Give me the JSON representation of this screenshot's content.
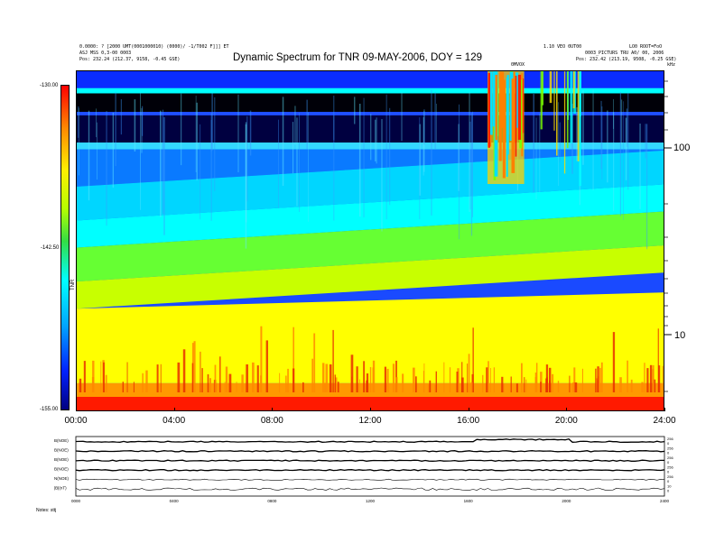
{
  "header": {
    "left_line1": "0.0000: ? [2000 UMT(0001000010) (0000)/ -1/T002 F]]]  ET",
    "left_line2": "ASJ MSS 0,3-00 0003",
    "left_line3": "Pos:  232.24 (212.37, 9158, -0.45 GSE)",
    "right_line1": "1.10 VEO 0UT00",
    "right_line2": "LO0 ROOT=FoO",
    "right_line3": "0003_PICTURS  TRU A0/ 00, 2006",
    "right_line4": "Pos:  232.42 (213.19, 9508, -0.25 GSE)",
    "marker": "0MVOX"
  },
  "chart_data": {
    "type": "heatmap",
    "title": "Dynamic Spectrum for TNR 09-MAY-2006, DOY = 129",
    "x_ticks": [
      "00:00",
      "04:00",
      "08:00",
      "12:00",
      "16:00",
      "20:00",
      "24:00"
    ],
    "xlim_hours": [
      0,
      24
    ],
    "y_scale": "log",
    "ylabel_right": "kHz",
    "y_ticks": [
      "100",
      "10"
    ],
    "colorbar": {
      "label": "TNR",
      "ticks": [
        "-130.00",
        "-142.50",
        "-155.00"
      ],
      "range_db": [
        -155,
        -130
      ]
    },
    "bands": [
      {
        "from": 0.0,
        "to": 0.05,
        "color": "#0a2cff"
      },
      {
        "from": 0.05,
        "to": 0.065,
        "color": "#00ffff"
      },
      {
        "from": 0.065,
        "to": 0.12,
        "color": "#000008"
      },
      {
        "from": 0.12,
        "to": 0.13,
        "color": "#2050ff"
      },
      {
        "from": 0.13,
        "to": 0.21,
        "color": "#000040"
      },
      {
        "from": 0.21,
        "to": 0.23,
        "color": "#34d8ff"
      },
      {
        "from": 0.23,
        "to": 0.34,
        "color": "#0a7aff"
      },
      {
        "from": 0.34,
        "to": 0.44,
        "color": "#00d6ff"
      },
      {
        "from": 0.44,
        "to": 0.52,
        "color": "#00ffff"
      },
      {
        "from": 0.52,
        "to": 0.62,
        "color": "#66ff33"
      },
      {
        "from": 0.62,
        "to": 0.7,
        "color": "#c8ff00"
      },
      {
        "from": 0.7,
        "to": 0.92,
        "color": "#ffff00"
      },
      {
        "from": 0.92,
        "to": 0.96,
        "color": "#ff9900"
      },
      {
        "from": 0.96,
        "to": 1.0,
        "color": "#ff1a00"
      }
    ]
  },
  "panels": {
    "rows": [
      {
        "label": "B(NOE)",
        "right_ticks": [
          "256",
          "0"
        ]
      },
      {
        "label": "B(NOE)",
        "right_ticks": [
          "256",
          "0"
        ]
      },
      {
        "label": "B(NOE)",
        "right_ticks": [
          "256",
          "0"
        ]
      },
      {
        "label": "B(NOE)",
        "right_ticks": [
          "256",
          "0"
        ]
      },
      {
        "label": "N(NOE)",
        "right_ticks": [
          "256",
          "0"
        ]
      },
      {
        "label": "|B|(nT)",
        "right_ticks": [
          "10",
          "0"
        ]
      }
    ],
    "x_ticks": [
      "0000",
      "0400",
      "0800",
      "1200",
      "1600",
      "2000",
      "2400"
    ],
    "footer_label": "Notes:  sttj"
  }
}
